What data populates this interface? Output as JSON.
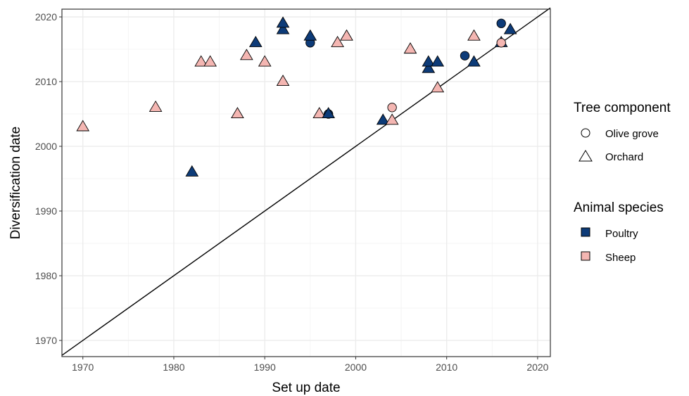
{
  "chart_data": {
    "type": "scatter",
    "xlabel": "Set up date",
    "ylabel": "Diversification date",
    "xlim": [
      1967.7,
      2021.4
    ],
    "ylim": [
      1967.5,
      2021.2
    ],
    "xticks": [
      1970,
      1980,
      1990,
      2000,
      2010,
      2020
    ],
    "yticks": [
      1970,
      1980,
      1990,
      2000,
      2010,
      2020
    ],
    "grid": true,
    "reference_line": {
      "type": "identity",
      "from": 1967.7,
      "to": 2021.4
    },
    "legend_placement": "right",
    "legends": [
      {
        "title": "Tree component",
        "entries": [
          {
            "label": "Olive grove",
            "shape": "circle"
          },
          {
            "label": "Orchard",
            "shape": "triangle"
          }
        ]
      },
      {
        "title": "Animal species",
        "entries": [
          {
            "label": "Poultry",
            "color": "#0d3b78"
          },
          {
            "label": "Sheep",
            "color": "#f4b6b2"
          }
        ]
      }
    ],
    "points": [
      {
        "x": 1970,
        "y": 2003,
        "tree": "Orchard",
        "animal": "Sheep"
      },
      {
        "x": 1978,
        "y": 2006,
        "tree": "Orchard",
        "animal": "Sheep"
      },
      {
        "x": 1982,
        "y": 1996,
        "tree": "Orchard",
        "animal": "Poultry"
      },
      {
        "x": 1983,
        "y": 2013,
        "tree": "Orchard",
        "animal": "Sheep"
      },
      {
        "x": 1984,
        "y": 2013,
        "tree": "Orchard",
        "animal": "Sheep"
      },
      {
        "x": 1987,
        "y": 2005,
        "tree": "Orchard",
        "animal": "Sheep"
      },
      {
        "x": 1988,
        "y": 2014,
        "tree": "Orchard",
        "animal": "Sheep"
      },
      {
        "x": 1989,
        "y": 2016,
        "tree": "Orchard",
        "animal": "Poultry"
      },
      {
        "x": 1990,
        "y": 2013,
        "tree": "Orchard",
        "animal": "Sheep"
      },
      {
        "x": 1992,
        "y": 2010,
        "tree": "Orchard",
        "animal": "Sheep"
      },
      {
        "x": 1992,
        "y": 2018,
        "tree": "Orchard",
        "animal": "Poultry"
      },
      {
        "x": 1992,
        "y": 2019,
        "tree": "Orchard",
        "animal": "Poultry"
      },
      {
        "x": 1995,
        "y": 2016,
        "tree": "Olive grove",
        "animal": "Poultry"
      },
      {
        "x": 1995,
        "y": 2017,
        "tree": "Orchard",
        "animal": "Poultry"
      },
      {
        "x": 1996,
        "y": 2005,
        "tree": "Orchard",
        "animal": "Sheep"
      },
      {
        "x": 1997,
        "y": 2005,
        "tree": "Olive grove",
        "animal": "Poultry"
      },
      {
        "x": 1997,
        "y": 2005,
        "tree": "Orchard",
        "animal": "Poultry"
      },
      {
        "x": 1998,
        "y": 2016,
        "tree": "Orchard",
        "animal": "Sheep"
      },
      {
        "x": 1999,
        "y": 2017,
        "tree": "Orchard",
        "animal": "Sheep"
      },
      {
        "x": 2003,
        "y": 2004,
        "tree": "Orchard",
        "animal": "Poultry"
      },
      {
        "x": 2004,
        "y": 2006,
        "tree": "Olive grove",
        "animal": "Sheep"
      },
      {
        "x": 2004,
        "y": 2004,
        "tree": "Orchard",
        "animal": "Sheep"
      },
      {
        "x": 2006,
        "y": 2015,
        "tree": "Orchard",
        "animal": "Sheep"
      },
      {
        "x": 2008,
        "y": 2012,
        "tree": "Orchard",
        "animal": "Poultry"
      },
      {
        "x": 2008,
        "y": 2013,
        "tree": "Orchard",
        "animal": "Poultry"
      },
      {
        "x": 2009,
        "y": 2013,
        "tree": "Orchard",
        "animal": "Poultry"
      },
      {
        "x": 2009,
        "y": 2009,
        "tree": "Orchard",
        "animal": "Sheep"
      },
      {
        "x": 2012,
        "y": 2014,
        "tree": "Olive grove",
        "animal": "Poultry"
      },
      {
        "x": 2013,
        "y": 2013,
        "tree": "Orchard",
        "animal": "Poultry"
      },
      {
        "x": 2013,
        "y": 2017,
        "tree": "Orchard",
        "animal": "Sheep"
      },
      {
        "x": 2016,
        "y": 2019,
        "tree": "Olive grove",
        "animal": "Poultry"
      },
      {
        "x": 2016,
        "y": 2016,
        "tree": "Orchard",
        "animal": "Poultry"
      },
      {
        "x": 2016,
        "y": 2016,
        "tree": "Olive grove",
        "animal": "Sheep"
      },
      {
        "x": 2017,
        "y": 2018,
        "tree": "Orchard",
        "animal": "Poultry"
      }
    ]
  }
}
